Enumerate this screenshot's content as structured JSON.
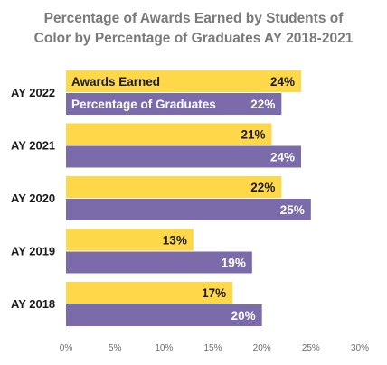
{
  "chart_data": {
    "type": "bar",
    "orientation": "horizontal",
    "title_lines": [
      "Percentage of Awards Earned by Students of",
      "Color by Percentage of Graduates AY 2018-2021"
    ],
    "categories": [
      "AY 2022",
      "AY 2021",
      "AY 2020",
      "AY 2019",
      "AY 2018"
    ],
    "series": [
      {
        "name": "Awards Earned",
        "values": [
          24,
          21,
          22,
          13,
          17
        ],
        "color": "#ffd84a",
        "label_color": "#1a1a1a"
      },
      {
        "name": "Percentage of Graduates",
        "values": [
          22,
          24,
          25,
          19,
          20
        ],
        "color": "#7b6bab",
        "label_color": "#ffffff"
      }
    ],
    "xlim": [
      0,
      30
    ],
    "xticks": [
      0,
      5,
      10,
      15,
      20,
      25,
      30
    ],
    "tick_suffix": "%",
    "value_suffix": "%",
    "grid": false,
    "legend": "inside-top-bars"
  }
}
